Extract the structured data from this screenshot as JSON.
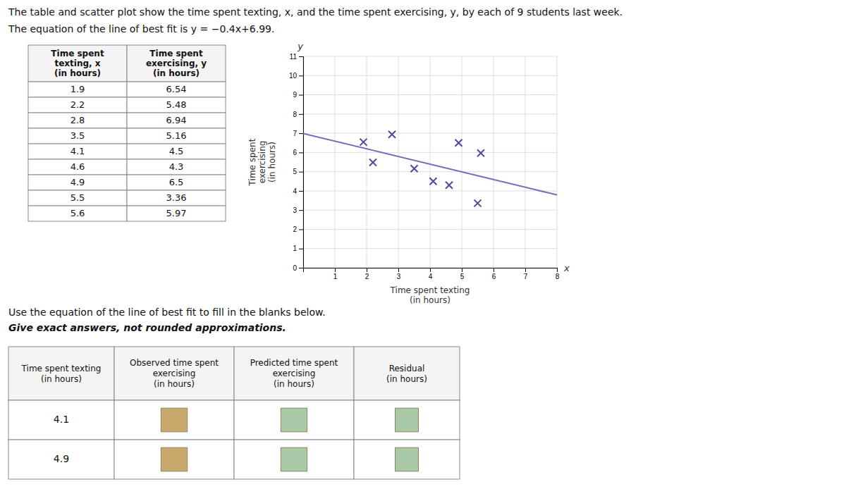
{
  "chart_data": {
    "type": "scatter",
    "title": "The table and scatter plot show the time spent texting, x, and the time spent exercising, y, by each of 9 students last week.",
    "subtitle": "The equation of the line of best fit is y = −0.4x+6.99.",
    "x_label": "Time spent texting\n(in hours)",
    "y_label": "Time spent\nexercising\n(in hours)",
    "annotations": [
      "y",
      "x"
    ],
    "series": [
      {
        "type": "scatter",
        "marker": "x",
        "color": "#4a4a9a",
        "x": [
          1.9,
          2.2,
          2.8,
          3.5,
          4.1,
          4.6,
          4.9,
          5.5,
          5.6
        ],
        "values": [
          6.54,
          5.48,
          6.94,
          5.16,
          4.5,
          4.3,
          6.5,
          3.36,
          5.97
        ]
      },
      {
        "type": "line",
        "color": "#7070bb",
        "x": [
          0,
          8
        ],
        "values": [
          6.99,
          3.79
        ]
      }
    ],
    "xlim": [
      0,
      8
    ],
    "ylim": [
      0,
      11
    ],
    "xticks": [
      {
        "value": 0,
        "label": null
      },
      1,
      2,
      3,
      4,
      5,
      6,
      7,
      8
    ],
    "yticks": [
      0,
      1,
      2,
      3,
      4,
      5,
      6,
      7,
      8,
      9,
      10,
      11
    ],
    "grid": true,
    "table": {
      "columns": [
        "Time spent\ntexting, x\n(in hours)",
        "Time spent\nexercising, y\n(in hours)"
      ]
    },
    "instructions": [
      "Use the equation of the line of best fit to fill in the blanks below.",
      "Give exact answers, not rounded approximations."
    ],
    "answer_table": {
      "columns": [
        "Time spent texting\n(in hours)",
        "Observed time spent\nexercising\n(in hours)",
        "Predicted time spent\nexercising\n(in hours)",
        "Residual\n(in hours)"
      ],
      "rows": [
        "4.1",
        "4.9"
      ],
      "colors": [
        "#c8a86a",
        "#a8c8a8",
        "#a8c8a8"
      ]
    }
  }
}
